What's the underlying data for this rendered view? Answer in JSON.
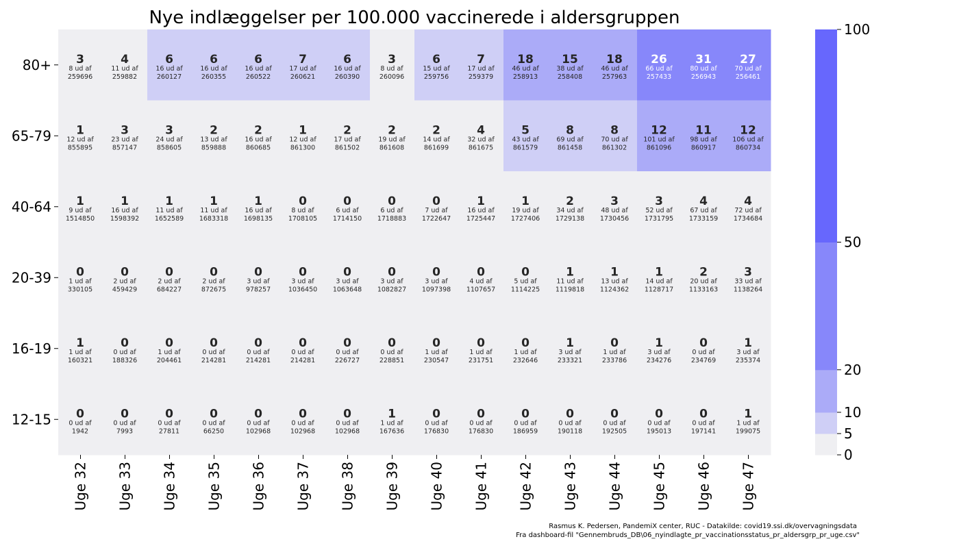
{
  "chart_data": {
    "type": "heatmap",
    "title": "Nye indlæggelser per 100.000 vaccinerede i aldersgruppen",
    "xlabel": "",
    "ylabel": "",
    "columns": [
      "Uge 32",
      "Uge 33",
      "Uge 34",
      "Uge 35",
      "Uge 36",
      "Uge 37",
      "Uge 38",
      "Uge 39",
      "Uge 40",
      "Uge 41",
      "Uge 42",
      "Uge 43",
      "Uge 44",
      "Uge 45",
      "Uge 46",
      "Uge 47"
    ],
    "rows": [
      "80+",
      "65-79",
      "40-64",
      "20-39",
      "16-19",
      "12-15"
    ],
    "colorbar": {
      "ticks": [
        0,
        5,
        10,
        20,
        50,
        100
      ],
      "bins": [
        {
          "from": 0,
          "to": 5,
          "color": "#efeff2"
        },
        {
          "from": 5,
          "to": 10,
          "color": "#cfcff6"
        },
        {
          "from": 10,
          "to": 20,
          "color": "#ababf8"
        },
        {
          "from": 20,
          "to": 50,
          "color": "#8787fa"
        },
        {
          "from": 50,
          "to": 100,
          "color": "#6767fd"
        }
      ]
    },
    "cells": [
      [
        {
          "v": 3,
          "n": 8,
          "d": 259696
        },
        {
          "v": 4,
          "n": 11,
          "d": 259882
        },
        {
          "v": 6,
          "n": 16,
          "d": 260127
        },
        {
          "v": 6,
          "n": 16,
          "d": 260355
        },
        {
          "v": 6,
          "n": 16,
          "d": 260522
        },
        {
          "v": 7,
          "n": 17,
          "d": 260621
        },
        {
          "v": 6,
          "n": 16,
          "d": 260390
        },
        {
          "v": 3,
          "n": 8,
          "d": 260096
        },
        {
          "v": 6,
          "n": 15,
          "d": 259756
        },
        {
          "v": 7,
          "n": 17,
          "d": 259379
        },
        {
          "v": 18,
          "n": 46,
          "d": 258913
        },
        {
          "v": 15,
          "n": 38,
          "d": 258408
        },
        {
          "v": 18,
          "n": 46,
          "d": 257963
        },
        {
          "v": 26,
          "n": 66,
          "d": 257433
        },
        {
          "v": 31,
          "n": 80,
          "d": 256943
        },
        {
          "v": 27,
          "n": 70,
          "d": 256461
        }
      ],
      [
        {
          "v": 1,
          "n": 12,
          "d": 855895
        },
        {
          "v": 3,
          "n": 23,
          "d": 857147
        },
        {
          "v": 3,
          "n": 24,
          "d": 858605
        },
        {
          "v": 2,
          "n": 13,
          "d": 859888
        },
        {
          "v": 2,
          "n": 16,
          "d": 860685
        },
        {
          "v": 1,
          "n": 12,
          "d": 861300
        },
        {
          "v": 2,
          "n": 17,
          "d": 861502
        },
        {
          "v": 2,
          "n": 19,
          "d": 861608
        },
        {
          "v": 2,
          "n": 14,
          "d": 861699
        },
        {
          "v": 4,
          "n": 32,
          "d": 861675
        },
        {
          "v": 5,
          "n": 43,
          "d": 861579
        },
        {
          "v": 8,
          "n": 69,
          "d": 861458
        },
        {
          "v": 8,
          "n": 70,
          "d": 861302
        },
        {
          "v": 12,
          "n": 101,
          "d": 861096
        },
        {
          "v": 11,
          "n": 98,
          "d": 860917
        },
        {
          "v": 12,
          "n": 106,
          "d": 860734
        }
      ],
      [
        {
          "v": 1,
          "n": 9,
          "d": 1514850
        },
        {
          "v": 1,
          "n": 16,
          "d": 1598392
        },
        {
          "v": 1,
          "n": 11,
          "d": 1652589
        },
        {
          "v": 1,
          "n": 11,
          "d": 1683318
        },
        {
          "v": 1,
          "n": 16,
          "d": 1698135
        },
        {
          "v": 0,
          "n": 8,
          "d": 1708105
        },
        {
          "v": 0,
          "n": 6,
          "d": 1714150
        },
        {
          "v": 0,
          "n": 6,
          "d": 1718883
        },
        {
          "v": 0,
          "n": 7,
          "d": 1722647
        },
        {
          "v": 1,
          "n": 16,
          "d": 1725447
        },
        {
          "v": 1,
          "n": 19,
          "d": 1727406
        },
        {
          "v": 2,
          "n": 34,
          "d": 1729138
        },
        {
          "v": 3,
          "n": 48,
          "d": 1730456
        },
        {
          "v": 3,
          "n": 52,
          "d": 1731795
        },
        {
          "v": 4,
          "n": 67,
          "d": 1733159
        },
        {
          "v": 4,
          "n": 72,
          "d": 1734684
        }
      ],
      [
        {
          "v": 0,
          "n": 1,
          "d": 330105
        },
        {
          "v": 0,
          "n": 2,
          "d": 459429
        },
        {
          "v": 0,
          "n": 2,
          "d": 684227
        },
        {
          "v": 0,
          "n": 2,
          "d": 872675
        },
        {
          "v": 0,
          "n": 3,
          "d": 978257
        },
        {
          "v": 0,
          "n": 3,
          "d": 1036450
        },
        {
          "v": 0,
          "n": 3,
          "d": 1063648
        },
        {
          "v": 0,
          "n": 3,
          "d": 1082827
        },
        {
          "v": 0,
          "n": 3,
          "d": 1097398
        },
        {
          "v": 0,
          "n": 4,
          "d": 1107657
        },
        {
          "v": 0,
          "n": 5,
          "d": 1114225
        },
        {
          "v": 1,
          "n": 11,
          "d": 1119818
        },
        {
          "v": 1,
          "n": 13,
          "d": 1124362
        },
        {
          "v": 1,
          "n": 14,
          "d": 1128717
        },
        {
          "v": 2,
          "n": 20,
          "d": 1133163
        },
        {
          "v": 3,
          "n": 33,
          "d": 1138264
        }
      ],
      [
        {
          "v": 1,
          "n": 1,
          "d": 160321
        },
        {
          "v": 0,
          "n": 0,
          "d": 188326
        },
        {
          "v": 0,
          "n": 1,
          "d": 204461
        },
        {
          "v": 0,
          "n": 0,
          "d": 214281
        },
        {
          "v": 0,
          "n": 0,
          "d": 214281
        },
        {
          "v": 0,
          "n": 0,
          "d": 214281
        },
        {
          "v": 0,
          "n": 0,
          "d": 226727
        },
        {
          "v": 0,
          "n": 0,
          "d": 228851
        },
        {
          "v": 0,
          "n": 1,
          "d": 230547
        },
        {
          "v": 0,
          "n": 1,
          "d": 231751
        },
        {
          "v": 0,
          "n": 1,
          "d": 232646
        },
        {
          "v": 1,
          "n": 3,
          "d": 233321
        },
        {
          "v": 0,
          "n": 1,
          "d": 233786
        },
        {
          "v": 1,
          "n": 3,
          "d": 234276
        },
        {
          "v": 0,
          "n": 0,
          "d": 234769
        },
        {
          "v": 1,
          "n": 3,
          "d": 235374
        }
      ],
      [
        {
          "v": 0,
          "n": 0,
          "d": 1942
        },
        {
          "v": 0,
          "n": 0,
          "d": 7993
        },
        {
          "v": 0,
          "n": 0,
          "d": 27811
        },
        {
          "v": 0,
          "n": 0,
          "d": 66250
        },
        {
          "v": 0,
          "n": 0,
          "d": 102968
        },
        {
          "v": 0,
          "n": 0,
          "d": 102968
        },
        {
          "v": 0,
          "n": 0,
          "d": 102968
        },
        {
          "v": 1,
          "n": 1,
          "d": 167636
        },
        {
          "v": 0,
          "n": 0,
          "d": 176830
        },
        {
          "v": 0,
          "n": 0,
          "d": 176830
        },
        {
          "v": 0,
          "n": 0,
          "d": 186959
        },
        {
          "v": 0,
          "n": 0,
          "d": 190118
        },
        {
          "v": 0,
          "n": 0,
          "d": 192505
        },
        {
          "v": 0,
          "n": 0,
          "d": 195013
        },
        {
          "v": 0,
          "n": 0,
          "d": 197141
        },
        {
          "v": 1,
          "n": 1,
          "d": 199075
        }
      ]
    ],
    "cell_text_template": "ud af",
    "source_lines": [
      "Rasmus K. Pedersen, PandemiX center, RUC - Datakilde: covid19.ssi.dk/overvagningsdata",
      "Fra dashboard-fil \"Gennembruds_DB\\06_nyindlagte_pr_vaccinationsstatus_pr_aldersgrp_pr_uge.csv\""
    ]
  }
}
